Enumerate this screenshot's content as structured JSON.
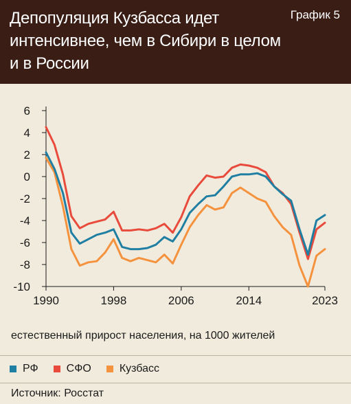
{
  "header": {
    "title": "Депопуляция Кузбасса идет\nинтенсивнее, чем в Сибири в целом\nи в России",
    "chart_label": "График 5"
  },
  "caption": "естественный прирост населения, на 1000 жителей",
  "source": "Источник: Росстат",
  "colors": {
    "header_bg": "#3a1d15",
    "page_bg": "#f1ebdd",
    "rf": "#1f7fa3",
    "sfo": "#e84a3b",
    "kuzbass": "#f5923e"
  },
  "chart_data": {
    "type": "line",
    "xlim": [
      1990,
      2023
    ],
    "ylim": [
      -10,
      6
    ],
    "x_ticks": [
      1990,
      1998,
      2006,
      2014,
      2023
    ],
    "x_tick_labels": [
      "1990",
      "1998",
      "2006",
      "2014",
      "2023"
    ],
    "y_ticks": [
      6,
      4,
      2,
      0,
      -2,
      -4,
      -6,
      -8,
      -10
    ],
    "y_tick_labels": [
      "6",
      "4",
      "2",
      "0",
      "-2",
      "-4",
      "-6",
      "-8",
      "-10"
    ],
    "x": [
      1990,
      1991,
      1992,
      1993,
      1994,
      1995,
      1996,
      1997,
      1998,
      1999,
      2000,
      2001,
      2002,
      2003,
      2004,
      2005,
      2006,
      2007,
      2008,
      2009,
      2010,
      2011,
      2012,
      2013,
      2014,
      2015,
      2016,
      2017,
      2018,
      2019,
      2020,
      2021,
      2022,
      2023
    ],
    "series": [
      {
        "name": "РФ",
        "color": "#1f7fa3",
        "values": [
          2.2,
          0.7,
          -1.5,
          -5.1,
          -6.1,
          -5.7,
          -5.3,
          -5.1,
          -4.8,
          -6.4,
          -6.6,
          -6.6,
          -6.5,
          -6.2,
          -5.5,
          -5.9,
          -4.8,
          -3.3,
          -2.5,
          -1.8,
          -1.7,
          -0.9,
          0.0,
          0.2,
          0.2,
          0.3,
          -0.0,
          -0.9,
          -1.6,
          -2.2,
          -4.8,
          -7.1,
          -4.0,
          -3.5
        ]
      },
      {
        "name": "СФО",
        "color": "#e84a3b",
        "values": [
          4.5,
          2.9,
          0.2,
          -3.6,
          -4.7,
          -4.3,
          -4.1,
          -3.9,
          -3.2,
          -4.9,
          -4.9,
          -4.8,
          -4.9,
          -4.7,
          -4.3,
          -5.1,
          -3.7,
          -1.8,
          -0.8,
          0.1,
          -0.1,
          0.0,
          0.8,
          1.1,
          1.0,
          0.8,
          0.4,
          -0.9,
          -1.5,
          -2.5,
          -5.1,
          -7.5,
          -4.8,
          -4.2
        ]
      },
      {
        "name": "Кузбасс",
        "color": "#f5923e",
        "values": [
          1.7,
          0.4,
          -2.7,
          -6.6,
          -8.1,
          -7.8,
          -7.7,
          -6.9,
          -5.7,
          -7.4,
          -7.7,
          -7.4,
          -7.6,
          -7.8,
          -7.1,
          -7.9,
          -6.2,
          -4.6,
          -3.5,
          -2.6,
          -3.0,
          -2.8,
          -1.5,
          -1.0,
          -1.5,
          -2.0,
          -2.3,
          -3.6,
          -4.6,
          -5.3,
          -8.1,
          -10.0,
          -7.2,
          -6.6
        ]
      }
    ],
    "grid": false,
    "legend_position": "bottom-left"
  }
}
